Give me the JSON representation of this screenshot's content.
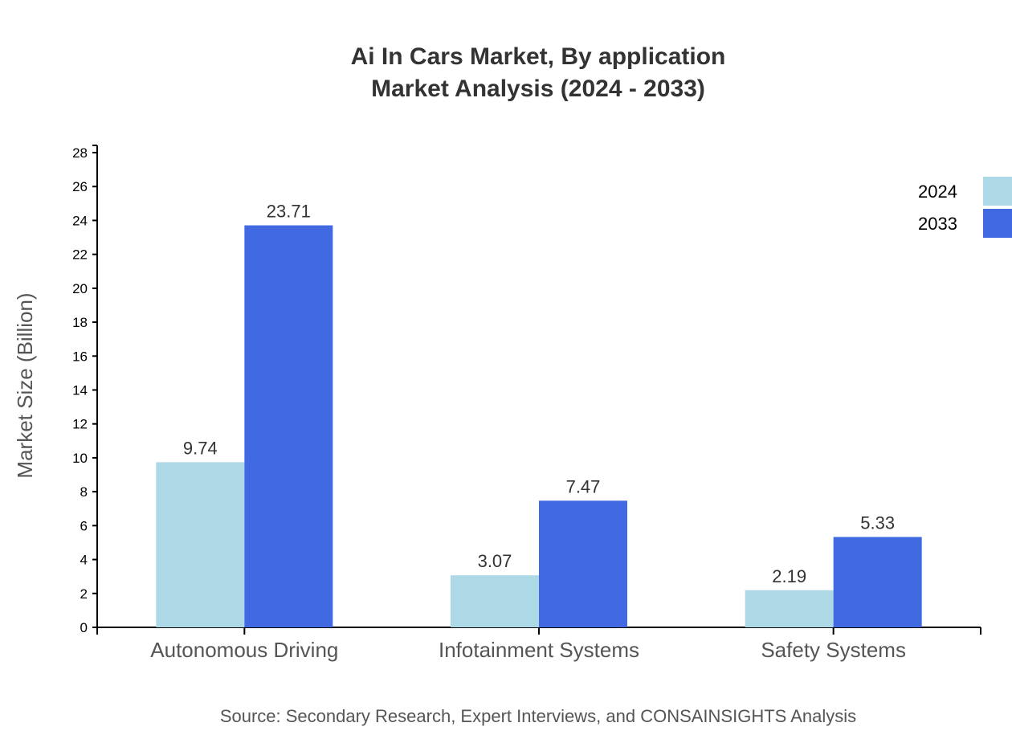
{
  "chart_data": {
    "type": "bar",
    "title": "Ai In Cars Market, By application",
    "subtitle": "Market Analysis (2024 - 2033)",
    "xlabel": "",
    "ylabel": "Market Size (Billion)",
    "ylim": [
      0,
      28
    ],
    "yticks": [
      0,
      2,
      4,
      6,
      8,
      10,
      12,
      14,
      16,
      18,
      20,
      22,
      24,
      26,
      28
    ],
    "categories": [
      "Autonomous Driving",
      "Infotainment Systems",
      "Safety Systems"
    ],
    "series": [
      {
        "name": "2024",
        "color": "#ADD8E6",
        "values": [
          9.74,
          3.07,
          2.19
        ]
      },
      {
        "name": "2033",
        "color": "#4169E1",
        "values": [
          23.71,
          7.47,
          5.33
        ]
      }
    ],
    "grid": false,
    "legend": "top-right",
    "source": "Source: Secondary Research, Expert Interviews, and CONSAINSIGHTS Analysis"
  }
}
